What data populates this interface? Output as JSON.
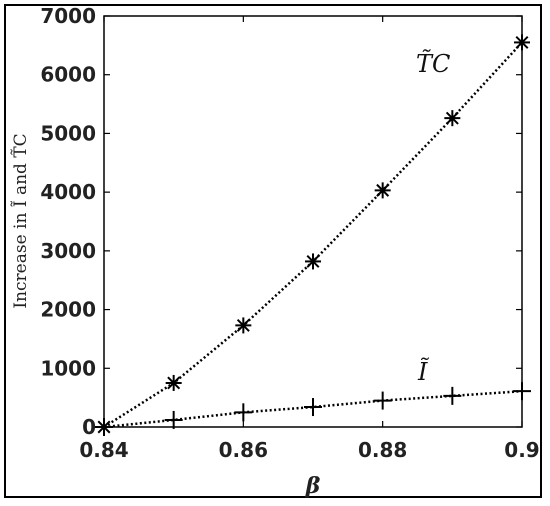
{
  "chart_data": {
    "type": "line",
    "x": [
      0.84,
      0.85,
      0.86,
      0.87,
      0.88,
      0.89,
      0.9
    ],
    "series": [
      {
        "name": "T̃C",
        "marker": "asterisk",
        "line_style": "dotted",
        "values": [
          0,
          750,
          1730,
          2820,
          4030,
          5260,
          6550
        ]
      },
      {
        "name": "Ĩ",
        "marker": "plus",
        "line_style": "dotted",
        "values": [
          0,
          120,
          250,
          340,
          450,
          530,
          610
        ]
      }
    ],
    "xlabel": "β",
    "ylabel": "Increase in Ĩ and T̃C",
    "xlim": [
      0.84,
      0.9
    ],
    "ylim": [
      0,
      7000
    ],
    "xticks": [
      "0.84",
      "0.86",
      "0.88",
      "0.9"
    ],
    "yticks": [
      "0",
      "1000",
      "2000",
      "3000",
      "4000",
      "5000",
      "6000",
      "7000"
    ],
    "grid": false,
    "legend": "none"
  },
  "colors": {
    "line": "#000000",
    "text": "#222222"
  }
}
